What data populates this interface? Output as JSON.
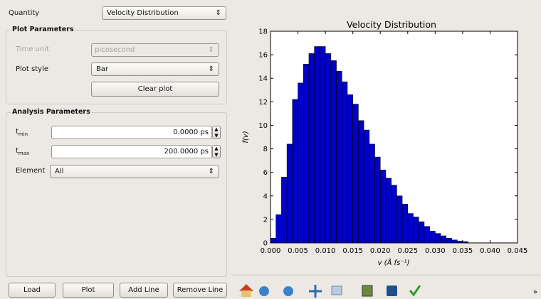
{
  "form": {
    "quantity_label": "Quantity",
    "quantity_value": "Velocity Distribution",
    "plot_parameters": {
      "title": "Plot Parameters",
      "time_unit_label": "Time unit",
      "time_unit_value": "picosecond",
      "plot_style_label": "Plot style",
      "plot_style_value": "Bar",
      "clear_plot": "Clear plot"
    },
    "analysis_parameters": {
      "title": "Analysis Parameters",
      "tmin_label": {
        "base": "t",
        "sub": "min"
      },
      "tmin_value": "0.0000 ps",
      "tmax_label": {
        "base": "t",
        "sub": "max"
      },
      "tmax_value": "200.0000 ps",
      "element_label": "Element",
      "element_value": "All"
    },
    "buttons": [
      "Load",
      "Plot",
      "Add Line",
      "Remove Line"
    ]
  },
  "toolbar_more": "»",
  "chart_data": {
    "type": "histogram",
    "title": "Velocity Distribution",
    "xlabel": "v (Å fs⁻¹)",
    "ylabel": "f(v)",
    "bins": [
      0,
      0.001,
      0.002,
      0.003,
      0.004,
      0.005,
      0.006,
      0.007,
      0.008,
      0.009,
      0.01,
      0.011,
      0.012,
      0.013,
      0.014,
      0.015,
      0.016,
      0.017,
      0.018,
      0.019,
      0.02,
      0.021,
      0.022,
      0.023,
      0.024,
      0.025,
      0.026,
      0.027,
      0.028,
      0.029,
      0.03,
      0.031,
      0.032,
      0.033,
      0.034,
      0.035,
      0.036
    ],
    "values": [
      0.4,
      2.4,
      5.6,
      8.4,
      12.2,
      13.6,
      15.2,
      16.1,
      16.7,
      16.7,
      16.1,
      15.5,
      14.6,
      13.7,
      12.6,
      11.8,
      10.4,
      9.6,
      8.4,
      7.3,
      6.2,
      5.5,
      4.9,
      4.0,
      3.3,
      2.5,
      2.2,
      1.8,
      1.4,
      1.0,
      0.8,
      0.6,
      0.4,
      0.25,
      0.15,
      0.1
    ],
    "color": "#0000c8",
    "xlim": [
      0,
      0.045
    ],
    "ylim": [
      0,
      18
    ],
    "xticks": [
      {
        "value": 0,
        "label": "0.000"
      },
      0.005,
      {
        "value": 0.01,
        "label": "0.010"
      },
      0.015,
      {
        "value": 0.02,
        "label": "0.020"
      },
      0.025,
      {
        "value": 0.03,
        "label": "0.030"
      },
      0.035,
      {
        "value": 0.04,
        "label": "0.040"
      },
      0.045
    ],
    "yticks": [
      0,
      2,
      4,
      6,
      8,
      10,
      12,
      14,
      16,
      18
    ]
  }
}
